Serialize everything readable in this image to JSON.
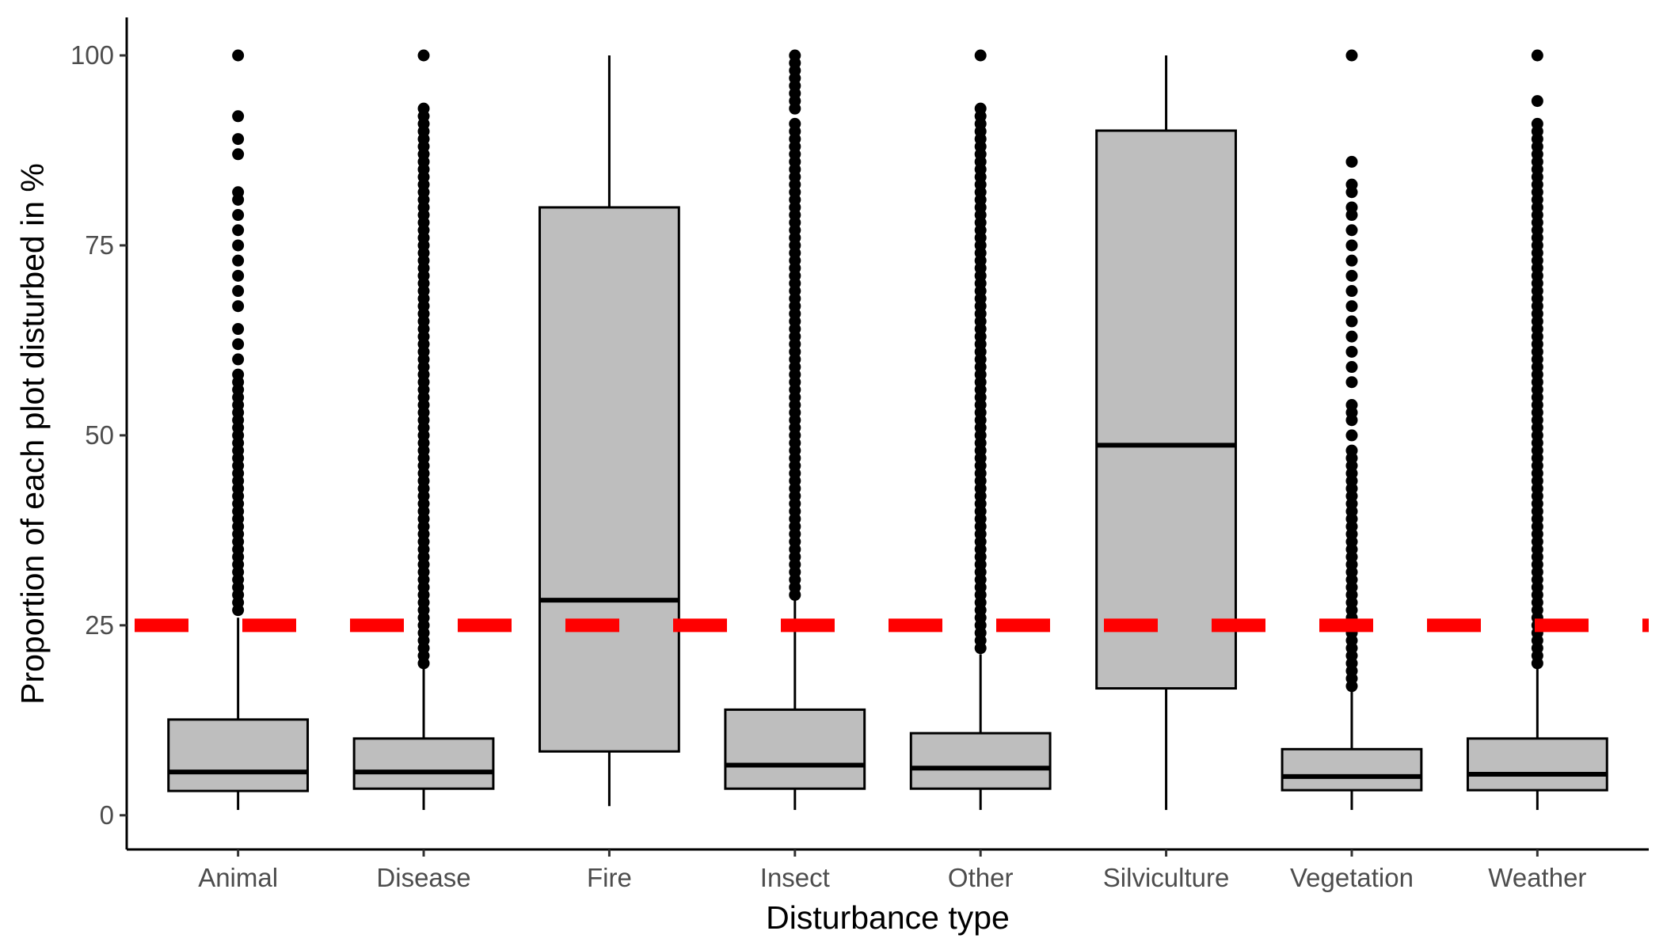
{
  "chart_data": {
    "type": "box",
    "title": "",
    "xlabel": "Disturbance type",
    "ylabel": "Proportion of each plot disturbed in %",
    "ylim": [
      -4.5,
      105
    ],
    "yticks": [
      0,
      25,
      50,
      75,
      100
    ],
    "categories": [
      "Animal",
      "Disease",
      "Fire",
      "Insect",
      "Other",
      "Silviculture",
      "Vegetation",
      "Weather"
    ],
    "boxes": [
      {
        "category": "Animal",
        "whisker_low": 0.7,
        "q1": 3.2,
        "median": 5.7,
        "q3": 12.6,
        "whisker_high": 26.0,
        "outliers": [
          27,
          28,
          29,
          30,
          31,
          32,
          33,
          34,
          35,
          36,
          37,
          38,
          39,
          40,
          41,
          42,
          43,
          44,
          45,
          46,
          47,
          48,
          49,
          50,
          51,
          52,
          53,
          54,
          55,
          56,
          57,
          58,
          60,
          62,
          64,
          67,
          69,
          71,
          73,
          75,
          77,
          79,
          81,
          82,
          87,
          89,
          92,
          100
        ]
      },
      {
        "category": "Disease",
        "whisker_low": 0.7,
        "q1": 3.5,
        "median": 5.7,
        "q3": 10.1,
        "whisker_high": 19.6,
        "outliers": [
          20,
          21,
          22,
          23,
          24,
          25,
          26,
          27,
          28,
          29,
          30,
          31,
          32,
          33,
          34,
          35,
          36,
          37,
          38,
          39,
          40,
          41,
          42,
          43,
          44,
          45,
          46,
          47,
          48,
          49,
          50,
          51,
          52,
          53,
          54,
          55,
          56,
          57,
          58,
          59,
          60,
          61,
          62,
          63,
          64,
          65,
          66,
          67,
          68,
          69,
          70,
          71,
          72,
          73,
          74,
          75,
          76,
          77,
          78,
          79,
          80,
          81,
          82,
          83,
          84,
          85,
          86,
          87,
          88,
          89,
          90,
          91,
          92,
          93,
          100
        ]
      },
      {
        "category": "Fire",
        "whisker_low": 1.2,
        "q1": 8.4,
        "median": 28.3,
        "q3": 80.0,
        "whisker_high": 100.0,
        "outliers": []
      },
      {
        "category": "Insect",
        "whisker_low": 0.7,
        "q1": 3.5,
        "median": 6.6,
        "q3": 13.9,
        "whisker_high": 28.6,
        "outliers": [
          29,
          30,
          31,
          32,
          33,
          34,
          35,
          36,
          37,
          38,
          39,
          40,
          41,
          42,
          43,
          44,
          45,
          46,
          47,
          48,
          49,
          50,
          51,
          52,
          53,
          54,
          55,
          56,
          57,
          58,
          59,
          60,
          61,
          62,
          63,
          64,
          65,
          66,
          67,
          68,
          69,
          70,
          71,
          72,
          73,
          74,
          75,
          76,
          77,
          78,
          79,
          80,
          81,
          82,
          83,
          84,
          85,
          86,
          87,
          88,
          89,
          90,
          91,
          93,
          94,
          95,
          96,
          97,
          98,
          99,
          100
        ]
      },
      {
        "category": "Other",
        "whisker_low": 0.7,
        "q1": 3.5,
        "median": 6.2,
        "q3": 10.8,
        "whisker_high": 21.2,
        "outliers": [
          22,
          23,
          24,
          25,
          26,
          27,
          28,
          29,
          30,
          31,
          32,
          33,
          34,
          35,
          36,
          37,
          38,
          39,
          40,
          41,
          42,
          43,
          44,
          45,
          46,
          47,
          48,
          49,
          50,
          51,
          52,
          53,
          54,
          55,
          56,
          57,
          58,
          59,
          60,
          61,
          62,
          63,
          64,
          65,
          66,
          67,
          68,
          69,
          70,
          71,
          72,
          73,
          74,
          75,
          76,
          77,
          78,
          79,
          80,
          81,
          82,
          83,
          84,
          85,
          86,
          87,
          88,
          89,
          90,
          91,
          92,
          93,
          100
        ]
      },
      {
        "category": "Silviculture",
        "whisker_low": 0.7,
        "q1": 16.7,
        "median": 48.7,
        "q3": 90.1,
        "whisker_high": 100.0,
        "outliers": []
      },
      {
        "category": "Vegetation",
        "whisker_low": 0.7,
        "q1": 3.3,
        "median": 5.1,
        "q3": 8.7,
        "whisker_high": 16.6,
        "outliers": [
          17,
          18,
          19,
          20,
          21,
          22,
          23,
          24,
          25,
          26,
          27,
          28,
          29,
          30,
          31,
          32,
          33,
          34,
          35,
          36,
          37,
          38,
          39,
          40,
          41,
          42,
          43,
          44,
          45,
          46,
          47,
          48,
          50,
          52,
          53,
          54,
          57,
          59,
          61,
          63,
          65,
          67,
          69,
          71,
          73,
          75,
          77,
          79,
          80,
          82,
          83,
          86,
          100
        ]
      },
      {
        "category": "Weather",
        "whisker_low": 0.7,
        "q1": 3.3,
        "median": 5.4,
        "q3": 10.1,
        "whisker_high": 19.9,
        "outliers": [
          20,
          21,
          22,
          23,
          24,
          25,
          26,
          27,
          28,
          29,
          30,
          31,
          32,
          33,
          34,
          35,
          36,
          37,
          38,
          39,
          40,
          41,
          42,
          43,
          44,
          45,
          46,
          47,
          48,
          49,
          50,
          51,
          52,
          53,
          54,
          55,
          56,
          57,
          58,
          59,
          60,
          61,
          62,
          63,
          64,
          65,
          66,
          67,
          68,
          69,
          70,
          71,
          72,
          73,
          74,
          75,
          76,
          77,
          78,
          79,
          80,
          81,
          82,
          83,
          84,
          85,
          86,
          87,
          88,
          89,
          90,
          91,
          94,
          100
        ]
      }
    ],
    "reference_line": {
      "y": 25,
      "color": "#ff0000",
      "style": "dashed"
    },
    "box_fill": "#bebebe",
    "grid": false
  }
}
